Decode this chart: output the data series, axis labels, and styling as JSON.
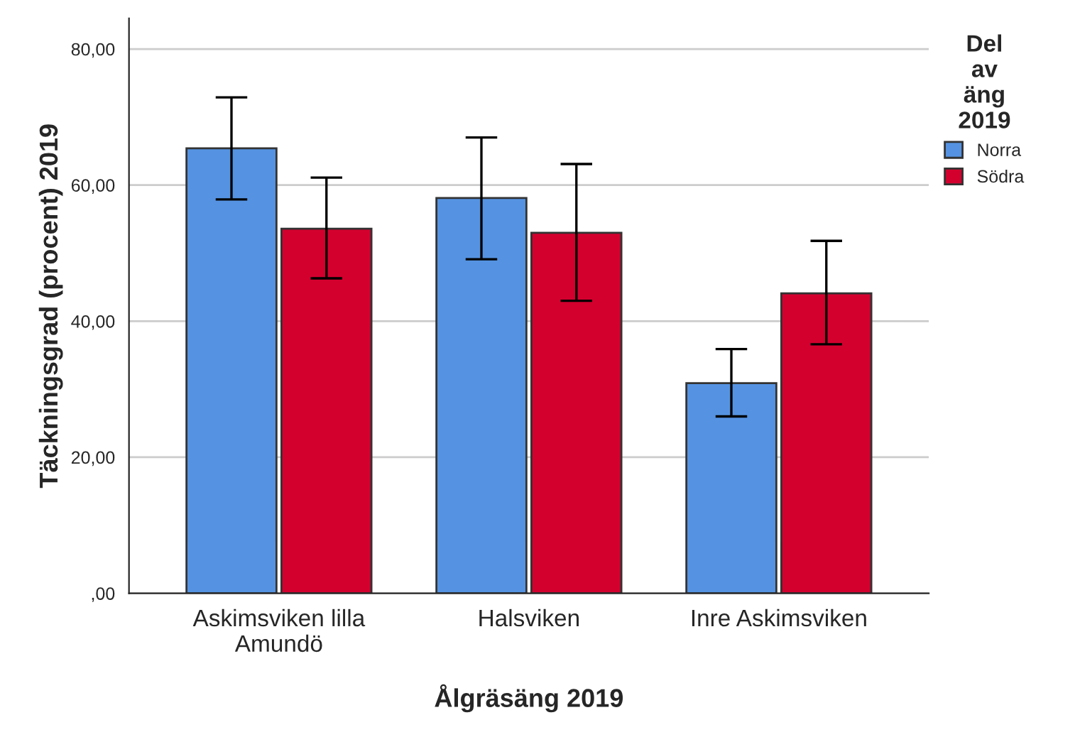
{
  "chart_data": {
    "type": "bar",
    "xlabel": "Ålgräsäng 2019",
    "ylabel": "Täckningsgrad (procent) 2019",
    "legend_title": "Del\nav\näng\n2019",
    "categories": [
      "Askimsviken lilla\nAmundö",
      "Halsviken",
      "Inre Askimsviken"
    ],
    "series": [
      {
        "name": "Norra",
        "color": "#5593e2",
        "values": [
          65.4,
          58.1,
          30.9
        ],
        "errors": [
          [
            57.9,
            72.9
          ],
          [
            49.1,
            67.0
          ],
          [
            26.0,
            35.9
          ]
        ]
      },
      {
        "name": "Södra",
        "color": "#d3002e",
        "values": [
          53.6,
          53.0,
          44.1
        ],
        "errors": [
          [
            46.3,
            61.1
          ],
          [
            43.0,
            63.1
          ],
          [
            36.6,
            51.8
          ]
        ]
      }
    ],
    "ylim": [
      0,
      84.5
    ],
    "yticks": [
      {
        "value": 0,
        "label": ",00"
      },
      {
        "value": 20,
        "label": "20,00"
      },
      {
        "value": 40,
        "label": "40,00"
      },
      {
        "value": 60,
        "label": "60,00"
      },
      {
        "value": 80,
        "label": "80,00"
      }
    ],
    "grid": "y",
    "legend": "right"
  }
}
